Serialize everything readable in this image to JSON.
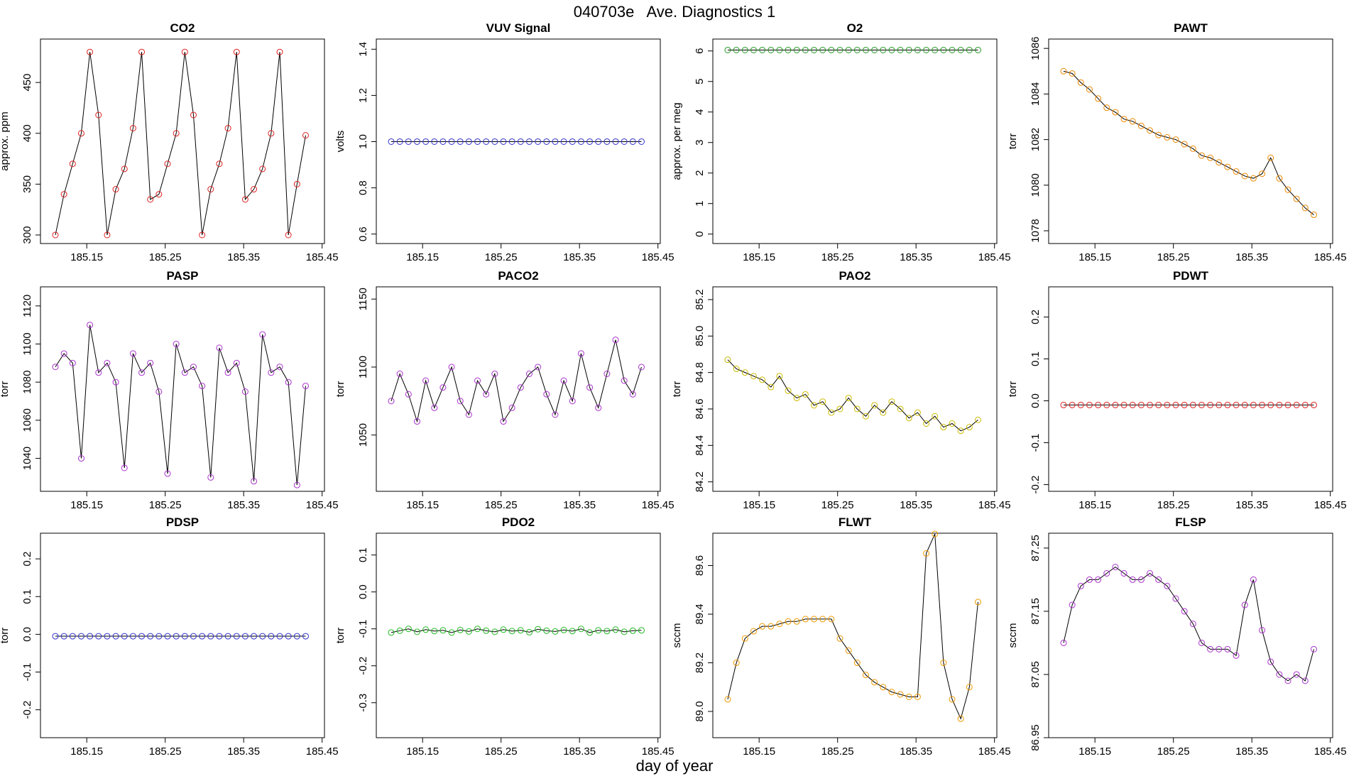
{
  "title": "040703e   Ave. Diagnostics 1",
  "xlabel": "day of year",
  "chart_data": [
    {
      "type": "scatter",
      "title": "CO2",
      "ylabel": "approx. ppm",
      "line_color": "#000000",
      "xlim": [
        185.091,
        185.453
      ],
      "xticks": [
        185.15,
        185.25,
        185.35,
        185.45
      ],
      "ylim": [
        291.6,
        492.7
      ],
      "yticks": [
        300,
        350,
        400,
        450
      ],
      "x": [
        185.11,
        185.121,
        185.132,
        185.143,
        185.154,
        185.165,
        185.176,
        185.187,
        185.198,
        185.209,
        185.22,
        185.231,
        185.242,
        185.253,
        185.264,
        185.275,
        185.286,
        185.297,
        185.308,
        185.319,
        185.33,
        185.341,
        185.352,
        185.363,
        185.374,
        185.385,
        185.396,
        185.407,
        185.418,
        185.429
      ],
      "series": [
        {
          "color": "#dd2222",
          "values": [
            300,
            340,
            370,
            400,
            480,
            418,
            300,
            345,
            365,
            405,
            480,
            335,
            340,
            370,
            400,
            480,
            418,
            300,
            345,
            370,
            405,
            480,
            335,
            345,
            365,
            400,
            480,
            300,
            350,
            398
          ]
        }
      ]
    },
    {
      "type": "scatter",
      "title": "VUV Signal",
      "ylabel": "volts",
      "line_color": "#000000",
      "xlim": [
        185.091,
        185.453
      ],
      "xticks": [
        185.15,
        185.25,
        185.35,
        185.45
      ],
      "ylim": [
        0.559,
        1.444
      ],
      "yticks": [
        {
          "value": 0.6,
          "label": "0.6"
        },
        {
          "value": 0.8,
          "label": "0.8"
        },
        {
          "value": 1.0,
          "label": "1.0"
        },
        {
          "value": 1.2,
          "label": "1.2"
        },
        {
          "value": 1.4,
          "label": "1.4"
        }
      ],
      "x": [
        185.11,
        185.121,
        185.132,
        185.143,
        185.154,
        185.165,
        185.176,
        185.187,
        185.198,
        185.209,
        185.22,
        185.231,
        185.242,
        185.253,
        185.264,
        185.275,
        185.286,
        185.297,
        185.308,
        185.319,
        185.33,
        185.341,
        185.352,
        185.363,
        185.374,
        185.385,
        185.396,
        185.407,
        185.418,
        185.429
      ],
      "series": [
        {
          "color": "#3333cc",
          "values": [
            1,
            1,
            1,
            1,
            1,
            1,
            1,
            1,
            1,
            1,
            1,
            1,
            1,
            1,
            1,
            1,
            1,
            1,
            1,
            1,
            1,
            1,
            1,
            1,
            1,
            1,
            1,
            1,
            1,
            1
          ]
        }
      ]
    },
    {
      "type": "scatter",
      "title": "O2",
      "ylabel": "approx. per meg",
      "line_color": "#000000",
      "xlim": [
        185.091,
        185.453
      ],
      "xticks": [
        185.15,
        185.25,
        185.35,
        185.45
      ],
      "ylim": [
        -0.31,
        6.39
      ],
      "yticks": [
        0,
        1,
        2,
        3,
        4,
        5,
        6
      ],
      "x": [
        185.11,
        185.121,
        185.132,
        185.143,
        185.154,
        185.165,
        185.176,
        185.187,
        185.198,
        185.209,
        185.22,
        185.231,
        185.242,
        185.253,
        185.264,
        185.275,
        185.286,
        185.297,
        185.308,
        185.319,
        185.33,
        185.341,
        185.352,
        185.363,
        185.374,
        185.385,
        185.396,
        185.407,
        185.418,
        185.429
      ],
      "series": [
        {
          "color": "#229922",
          "values": [
            6.03,
            6.03,
            6.03,
            6.03,
            6.03,
            6.03,
            6.03,
            6.03,
            6.03,
            6.03,
            6.03,
            6.03,
            6.03,
            6.03,
            6.03,
            6.03,
            6.03,
            6.03,
            6.03,
            6.03,
            6.03,
            6.03,
            6.03,
            6.03,
            6.03,
            6.03,
            6.03,
            6.03,
            6.03,
            6.03
          ]
        }
      ]
    },
    {
      "type": "scatter",
      "title": "PAWT",
      "ylabel": "torr",
      "line_color": "#000000",
      "xlim": [
        185.091,
        185.453
      ],
      "xticks": [
        185.15,
        185.25,
        185.35,
        185.45
      ],
      "ylim": [
        1077.44,
        1086.41
      ],
      "yticks": [
        1078,
        1080,
        1082,
        1084,
        1086
      ],
      "x": [
        185.11,
        185.121,
        185.132,
        185.143,
        185.154,
        185.165,
        185.176,
        185.187,
        185.198,
        185.209,
        185.22,
        185.231,
        185.242,
        185.253,
        185.264,
        185.275,
        185.286,
        185.297,
        185.308,
        185.319,
        185.33,
        185.341,
        185.352,
        185.363,
        185.374,
        185.385,
        185.396,
        185.407,
        185.418,
        185.429
      ],
      "series": [
        {
          "color": "#ee8800",
          "values": [
            1085,
            1084.9,
            1084.5,
            1084.2,
            1083.8,
            1083.4,
            1083.2,
            1082.9,
            1082.8,
            1082.6,
            1082.4,
            1082.2,
            1082.1,
            1082,
            1081.8,
            1081.6,
            1081.3,
            1081.2,
            1081,
            1080.8,
            1080.6,
            1080.4,
            1080.3,
            1080.5,
            1081.2,
            1080.3,
            1079.8,
            1079.4,
            1079,
            1078.7
          ]
        }
      ]
    },
    {
      "type": "scatter",
      "title": "PASP",
      "ylabel": "torr",
      "line_color": "#000000",
      "xlim": [
        185.091,
        185.453
      ],
      "xticks": [
        185.15,
        185.25,
        185.35,
        185.45
      ],
      "ylim": [
        1022.7,
        1130
      ],
      "yticks": [
        1040,
        1060,
        1080,
        1100,
        1120
      ],
      "x": [
        185.11,
        185.121,
        185.132,
        185.143,
        185.154,
        185.165,
        185.176,
        185.187,
        185.198,
        185.209,
        185.22,
        185.231,
        185.242,
        185.253,
        185.264,
        185.275,
        185.286,
        185.297,
        185.308,
        185.319,
        185.33,
        185.341,
        185.352,
        185.363,
        185.374,
        185.385,
        185.396,
        185.407,
        185.418,
        185.429
      ],
      "series": [
        {
          "color": "#aa33cc",
          "values": [
            1088,
            1095,
            1090,
            1040,
            1110,
            1085,
            1090,
            1080,
            1035,
            1095,
            1085,
            1090,
            1075,
            1032,
            1100,
            1085,
            1088,
            1078,
            1030,
            1098,
            1085,
            1090,
            1075,
            1028,
            1105,
            1085,
            1088,
            1080,
            1026,
            1078
          ]
        }
      ]
    },
    {
      "type": "scatter",
      "title": "PACO2",
      "ylabel": "torr",
      "line_color": "#000000",
      "xlim": [
        185.091,
        185.453
      ],
      "xticks": [
        185.15,
        185.25,
        185.35,
        185.45
      ],
      "ylim": [
        1008.6,
        1159
      ],
      "yticks": [
        1050,
        1100,
        1150
      ],
      "x": [
        185.11,
        185.121,
        185.132,
        185.143,
        185.154,
        185.165,
        185.176,
        185.187,
        185.198,
        185.209,
        185.22,
        185.231,
        185.242,
        185.253,
        185.264,
        185.275,
        185.286,
        185.297,
        185.308,
        185.319,
        185.33,
        185.341,
        185.352,
        185.363,
        185.374,
        185.385,
        185.396,
        185.407,
        185.418,
        185.429
      ],
      "series": [
        {
          "color": "#aa33cc",
          "values": [
            1075,
            1095,
            1080,
            1060,
            1090,
            1070,
            1085,
            1100,
            1075,
            1065,
            1090,
            1080,
            1095,
            1060,
            1070,
            1085,
            1095,
            1100,
            1080,
            1065,
            1090,
            1075,
            1110,
            1085,
            1070,
            1095,
            1120,
            1090,
            1080,
            1100
          ]
        }
      ]
    },
    {
      "type": "scatter",
      "title": "PAO2",
      "ylabel": "torr",
      "line_color": "#000000",
      "xlim": [
        185.091,
        185.453
      ],
      "xticks": [
        185.15,
        185.25,
        185.35,
        185.45
      ],
      "ylim": [
        84.148,
        85.27
      ],
      "yticks": [
        84.2,
        84.4,
        84.6,
        84.8,
        {
          "value": 85.0,
          "label": "85.0"
        },
        85.2
      ],
      "x": [
        185.11,
        185.121,
        185.132,
        185.143,
        185.154,
        185.165,
        185.176,
        185.187,
        185.198,
        185.209,
        185.22,
        185.231,
        185.242,
        185.253,
        185.264,
        185.275,
        185.286,
        185.297,
        185.308,
        185.319,
        185.33,
        185.341,
        185.352,
        185.363,
        185.374,
        185.385,
        185.396,
        185.407,
        185.418,
        185.429
      ],
      "series": [
        {
          "color": "#ccbb00",
          "values": [
            84.87,
            84.82,
            84.8,
            84.78,
            84.76,
            84.72,
            84.78,
            84.7,
            84.66,
            84.68,
            84.62,
            84.64,
            84.58,
            84.6,
            84.66,
            84.6,
            84.56,
            84.62,
            84.58,
            84.64,
            84.6,
            84.55,
            84.58,
            84.52,
            84.56,
            84.5,
            84.52,
            84.48,
            84.5,
            84.54
          ]
        }
      ]
    },
    {
      "type": "scatter",
      "title": "PDWT",
      "ylabel": "torr",
      "line_color": "#000000",
      "xlim": [
        185.091,
        185.453
      ],
      "xticks": [
        185.15,
        185.25,
        185.35,
        185.45
      ],
      "ylim": [
        -0.216,
        0.272
      ],
      "yticks": [
        -0.2,
        -0.1,
        {
          "value": 0,
          "label": "0.0"
        },
        0.1,
        0.2
      ],
      "x": [
        185.11,
        185.121,
        185.132,
        185.143,
        185.154,
        185.165,
        185.176,
        185.187,
        185.198,
        185.209,
        185.22,
        185.231,
        185.242,
        185.253,
        185.264,
        185.275,
        185.286,
        185.297,
        185.308,
        185.319,
        185.33,
        185.341,
        185.352,
        185.363,
        185.374,
        185.385,
        185.396,
        185.407,
        185.418,
        185.429
      ],
      "series": [
        {
          "color": "#dd2222",
          "values": [
            -0.01,
            -0.01,
            -0.01,
            -0.01,
            -0.01,
            -0.01,
            -0.01,
            -0.01,
            -0.01,
            -0.01,
            -0.01,
            -0.01,
            -0.01,
            -0.01,
            -0.01,
            -0.01,
            -0.01,
            -0.01,
            -0.01,
            -0.01,
            -0.01,
            -0.01,
            -0.01,
            -0.01,
            -0.01,
            -0.01,
            -0.01,
            -0.01,
            -0.01,
            -0.01
          ]
        }
      ]
    },
    {
      "type": "scatter",
      "title": "PDSP",
      "ylabel": "torr",
      "line_color": "#000000",
      "xlim": [
        185.091,
        185.453
      ],
      "xticks": [
        185.15,
        185.25,
        185.35,
        185.45
      ],
      "ylim": [
        -0.274,
        0.268
      ],
      "yticks": [
        -0.2,
        -0.1,
        {
          "value": 0,
          "label": "0.0"
        },
        0.1,
        0.2
      ],
      "x": [
        185.11,
        185.121,
        185.132,
        185.143,
        185.154,
        185.165,
        185.176,
        185.187,
        185.198,
        185.209,
        185.22,
        185.231,
        185.242,
        185.253,
        185.264,
        185.275,
        185.286,
        185.297,
        185.308,
        185.319,
        185.33,
        185.341,
        185.352,
        185.363,
        185.374,
        185.385,
        185.396,
        185.407,
        185.418,
        185.429
      ],
      "series": [
        {
          "color": "#3333cc",
          "values": [
            -0.005,
            -0.005,
            -0.005,
            -0.005,
            -0.005,
            -0.005,
            -0.005,
            -0.005,
            -0.005,
            -0.005,
            -0.005,
            -0.005,
            -0.005,
            -0.005,
            -0.005,
            -0.005,
            -0.005,
            -0.005,
            -0.005,
            -0.005,
            -0.005,
            -0.005,
            -0.005,
            -0.005,
            -0.005,
            -0.005,
            -0.005,
            -0.005,
            -0.005,
            -0.005
          ]
        }
      ]
    },
    {
      "type": "scatter",
      "title": "PDO2",
      "ylabel": "torr",
      "line_color": "#000000",
      "xlim": [
        185.091,
        185.453
      ],
      "xticks": [
        185.15,
        185.25,
        185.35,
        185.45
      ],
      "ylim": [
        -0.3947,
        0.159
      ],
      "yticks": [
        -0.3,
        -0.2,
        -0.1,
        {
          "value": 0,
          "label": "0.0"
        },
        0.1
      ],
      "x": [
        185.11,
        185.121,
        185.132,
        185.143,
        185.154,
        185.165,
        185.176,
        185.187,
        185.198,
        185.209,
        185.22,
        185.231,
        185.242,
        185.253,
        185.264,
        185.275,
        185.286,
        185.297,
        185.308,
        185.319,
        185.33,
        185.341,
        185.352,
        185.363,
        185.374,
        185.385,
        185.396,
        185.407,
        185.418,
        185.429
      ],
      "series": [
        {
          "color": "#22bb22",
          "values": [
            -0.11,
            -0.105,
            -0.1,
            -0.108,
            -0.102,
            -0.106,
            -0.104,
            -0.11,
            -0.103,
            -0.107,
            -0.1,
            -0.105,
            -0.108,
            -0.102,
            -0.106,
            -0.104,
            -0.109,
            -0.101,
            -0.105,
            -0.107,
            -0.103,
            -0.106,
            -0.1,
            -0.11,
            -0.104,
            -0.106,
            -0.102,
            -0.108,
            -0.105,
            -0.104
          ]
        }
      ]
    },
    {
      "type": "scatter",
      "title": "FLWT",
      "ylabel": "sccm",
      "line_color": "#000000",
      "xlim": [
        185.091,
        185.453
      ],
      "xticks": [
        185.15,
        185.25,
        185.35,
        185.45
      ],
      "ylim": [
        88.892,
        89.733
      ],
      "yticks": [
        {
          "value": 89.0,
          "label": "89.0"
        },
        89.2,
        89.4,
        89.6
      ],
      "x": [
        185.11,
        185.121,
        185.132,
        185.143,
        185.154,
        185.165,
        185.176,
        185.187,
        185.198,
        185.209,
        185.22,
        185.231,
        185.242,
        185.253,
        185.264,
        185.275,
        185.286,
        185.297,
        185.308,
        185.319,
        185.33,
        185.341,
        185.352,
        185.363,
        185.374,
        185.385,
        185.396,
        185.407,
        185.418,
        185.429
      ],
      "series": [
        {
          "color": "#ee9900",
          "values": [
            89.05,
            89.2,
            89.3,
            89.33,
            89.35,
            89.35,
            89.36,
            89.37,
            89.37,
            89.38,
            89.38,
            89.38,
            89.38,
            89.3,
            89.25,
            89.2,
            89.15,
            89.12,
            89.1,
            89.08,
            89.07,
            89.06,
            89.06,
            89.65,
            89.73,
            89.2,
            89.05,
            88.97,
            89.1,
            89.45
          ]
        }
      ]
    },
    {
      "type": "scatter",
      "title": "FLSP",
      "ylabel": "sccm",
      "line_color": "#000000",
      "xlim": [
        185.091,
        185.453
      ],
      "xticks": [
        185.15,
        185.25,
        185.35,
        185.45
      ],
      "ylim": [
        86.95,
        87.2735
      ],
      "yticks": [
        86.95,
        87.05,
        87.15,
        87.25
      ],
      "x": [
        185.11,
        185.121,
        185.132,
        185.143,
        185.154,
        185.165,
        185.176,
        185.187,
        185.198,
        185.209,
        185.22,
        185.231,
        185.242,
        185.253,
        185.264,
        185.275,
        185.286,
        185.297,
        185.308,
        185.319,
        185.33,
        185.341,
        185.352,
        185.363,
        185.374,
        185.385,
        185.396,
        185.407,
        185.418,
        185.429
      ],
      "series": [
        {
          "color": "#aa33cc",
          "values": [
            87.1,
            87.16,
            87.19,
            87.2,
            87.2,
            87.21,
            87.22,
            87.21,
            87.2,
            87.2,
            87.21,
            87.2,
            87.19,
            87.17,
            87.15,
            87.13,
            87.1,
            87.09,
            87.09,
            87.09,
            87.08,
            87.16,
            87.2,
            87.12,
            87.07,
            87.05,
            87.04,
            87.05,
            87.04,
            87.09
          ]
        }
      ]
    }
  ]
}
